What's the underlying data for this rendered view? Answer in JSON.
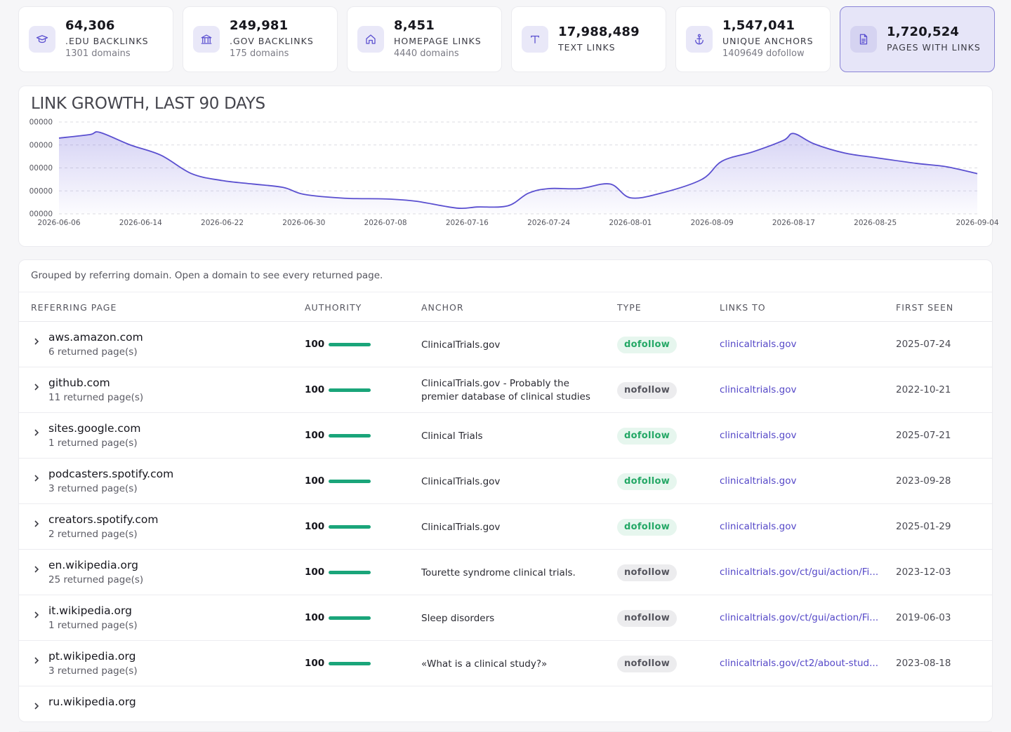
{
  "stats": [
    {
      "value": "64,306",
      "label": ".EDU BACKLINKS",
      "sub": "1301 domains",
      "icon": "graduation-cap-icon"
    },
    {
      "value": "249,981",
      "label": ".GOV BACKLINKS",
      "sub": "175 domains",
      "icon": "government-building-icon"
    },
    {
      "value": "8,451",
      "label": "HOMEPAGE LINKS",
      "sub": "4440 domains",
      "icon": "home-icon"
    },
    {
      "value": "17,988,489",
      "label": "TEXT LINKS",
      "sub": "",
      "icon": "text-icon"
    },
    {
      "value": "1,547,041",
      "label": "UNIQUE ANCHORS",
      "sub": "1409649 dofollow",
      "icon": "anchor-icon"
    },
    {
      "value": "1,720,524",
      "label": "PAGES WITH LINKS",
      "sub": "",
      "icon": "document-icon",
      "active": true
    }
  ],
  "chart": {
    "title": "LINK GROWTH, LAST 90 DAYS"
  },
  "chart_data": {
    "type": "area",
    "title": "LINK GROWTH, LAST 90 DAYS",
    "xlabel": "",
    "ylabel": "",
    "grid": true,
    "y_tick_labels": [
      "00000",
      "00000",
      "00000",
      "00000",
      "00000"
    ],
    "x_tick_labels": [
      "2026-06-06",
      "2026-06-14",
      "2026-06-22",
      "2026-06-30",
      "2026-07-08",
      "2026-07-16",
      "2026-07-24",
      "2026-08-01",
      "2026-08-09",
      "2026-08-17",
      "2026-08-25",
      "2026-09-04"
    ],
    "ylim": [
      0,
      4
    ],
    "series": [
      {
        "x": [
          "2026-06-06",
          "2026-06-09",
          "2026-06-10",
          "2026-06-13",
          "2026-06-16",
          "2026-06-19",
          "2026-06-22",
          "2026-06-25",
          "2026-06-28",
          "2026-06-30",
          "2026-07-04",
          "2026-07-08",
          "2026-07-11",
          "2026-07-15",
          "2026-07-17",
          "2026-07-20",
          "2026-07-22",
          "2026-07-24",
          "2026-07-27",
          "2026-07-30",
          "2026-08-01",
          "2026-08-04",
          "2026-08-08",
          "2026-08-10",
          "2026-08-13",
          "2026-08-16",
          "2026-08-17",
          "2026-08-19",
          "2026-08-22",
          "2026-08-25",
          "2026-08-29",
          "2026-09-01",
          "2026-09-04"
        ],
        "values": [
          3.3,
          3.45,
          3.55,
          3.0,
          2.55,
          1.75,
          1.45,
          1.3,
          1.15,
          0.85,
          0.68,
          0.65,
          0.55,
          0.25,
          0.3,
          0.35,
          0.9,
          1.1,
          1.1,
          1.3,
          0.7,
          0.9,
          1.5,
          2.3,
          2.7,
          3.2,
          3.5,
          3.05,
          2.65,
          2.45,
          2.2,
          2.05,
          1.75
        ]
      }
    ]
  },
  "table": {
    "note": "Grouped by referring domain. Open a domain to see every returned page.",
    "headers": {
      "page": "REFERRING PAGE",
      "authority": "AUTHORITY",
      "anchor": "ANCHOR",
      "type": "TYPE",
      "links_to": "LINKS TO",
      "first_seen": "FIRST SEEN"
    },
    "rows": [
      {
        "domain": "aws.amazon.com",
        "pages": "6 returned page(s)",
        "authority": "100",
        "authority_fraction": 1.0,
        "anchor": "ClinicalTrials.gov",
        "type": "dofollow",
        "links_to": "clinicaltrials.gov",
        "first_seen": "2025-07-24"
      },
      {
        "domain": "github.com",
        "pages": "11 returned page(s)",
        "authority": "100",
        "authority_fraction": 1.0,
        "anchor": "ClinicalTrials.gov - Probably the premier database of clinical studies",
        "type": "nofollow",
        "links_to": "clinicaltrials.gov",
        "first_seen": "2022-10-21"
      },
      {
        "domain": "sites.google.com",
        "pages": "1 returned page(s)",
        "authority": "100",
        "authority_fraction": 1.0,
        "anchor": "Clinical Trials",
        "type": "dofollow",
        "links_to": "clinicaltrials.gov",
        "first_seen": "2025-07-21"
      },
      {
        "domain": "podcasters.spotify.com",
        "pages": "3 returned page(s)",
        "authority": "100",
        "authority_fraction": 1.0,
        "anchor": "ClinicalTrials.gov",
        "type": "dofollow",
        "links_to": "clinicaltrials.gov",
        "first_seen": "2023-09-28"
      },
      {
        "domain": "creators.spotify.com",
        "pages": "2 returned page(s)",
        "authority": "100",
        "authority_fraction": 1.0,
        "anchor": "ClinicalTrials.gov",
        "type": "dofollow",
        "links_to": "clinicaltrials.gov",
        "first_seen": "2025-01-29"
      },
      {
        "domain": "en.wikipedia.org",
        "pages": "25 returned page(s)",
        "authority": "100",
        "authority_fraction": 1.0,
        "anchor": "Tourette syndrome clinical trials.",
        "type": "nofollow",
        "links_to": "clinicaltrials.gov/ct/gui/action/Fi...",
        "first_seen": "2023-12-03"
      },
      {
        "domain": "it.wikipedia.org",
        "pages": "1 returned page(s)",
        "authority": "100",
        "authority_fraction": 1.0,
        "anchor": "Sleep disorders",
        "type": "nofollow",
        "links_to": "clinicaltrials.gov/ct/gui/action/Fi...",
        "first_seen": "2019-06-03"
      },
      {
        "domain": "pt.wikipedia.org",
        "pages": "3 returned page(s)",
        "authority": "100",
        "authority_fraction": 1.0,
        "anchor": "«What is a clinical study?»",
        "type": "nofollow",
        "links_to": "clinicaltrials.gov/ct2/about-stud...",
        "first_seen": "2023-08-18"
      },
      {
        "domain": "ru.wikipedia.org",
        "pages": "",
        "authority": "",
        "authority_fraction": 1.0,
        "anchor": "",
        "type": "",
        "links_to": "",
        "first_seen": ""
      }
    ]
  },
  "colors": {
    "accent": "#5a4fd0",
    "dofollow": "#24a866",
    "authority_bar": "#1aa57a",
    "link": "#5548c8"
  }
}
